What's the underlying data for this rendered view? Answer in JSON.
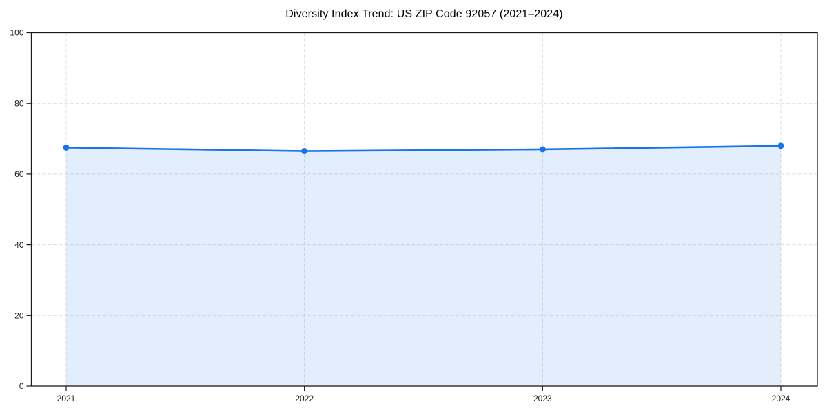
{
  "chart_data": {
    "type": "area",
    "title": "Diversity Index Trend: US ZIP Code 92057 (2021–2024)",
    "categories": [
      "2021",
      "2022",
      "2023",
      "2024"
    ],
    "values": [
      67.5,
      66.5,
      67.0,
      68.0
    ],
    "xlabel": "",
    "ylabel": "",
    "ylim": [
      0,
      100
    ],
    "yticks": [
      0,
      20,
      40,
      60,
      80,
      100
    ],
    "grid": true,
    "grid_style": "dashed",
    "legend_position": "none",
    "colors": {
      "line": "#1a73e8",
      "marker": "#1a73e8",
      "fill": "#1a73e8",
      "fill_opacity": 0.12,
      "grid": "#dcdcdc",
      "spine": "#1a1a1a",
      "tick_text": "#1a1a1a",
      "background": "#ffffff"
    }
  }
}
